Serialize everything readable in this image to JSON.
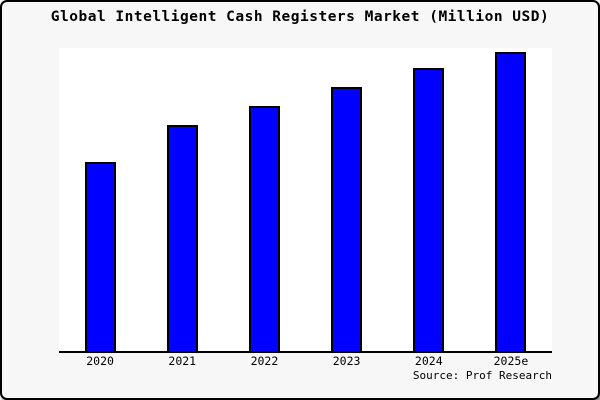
{
  "window": {
    "background_color": "#f7f7f7",
    "border_color": "#000000",
    "plot_background_color": "#ffffff"
  },
  "title": "Global Intelligent Cash Registers Market (Million USD)",
  "source_note": "Source: Prof Research",
  "colors": {
    "bar_fill": "#0000ff",
    "bar_border": "#000000",
    "axis_line": "#000000",
    "text": "#000000"
  },
  "chart_data": {
    "type": "bar",
    "title": "Global Intelligent Cash Registers Market (Million USD)",
    "categories": [
      "2020",
      "2021",
      "2022",
      "2023",
      "2024",
      "2025e"
    ],
    "values": [
      189,
      226,
      245,
      264,
      283,
      299
    ],
    "value_scale_note": "chart shows no y-axis, ticks or gridlines; values are relative bar heights estimated from pixels (baseline=0)",
    "xlabel": "",
    "ylabel": "",
    "ylim": [
      0,
      303
    ],
    "grid": false,
    "legend": false,
    "bar_color": "#0000ff",
    "annotations": [
      "Source: Prof Research"
    ]
  }
}
